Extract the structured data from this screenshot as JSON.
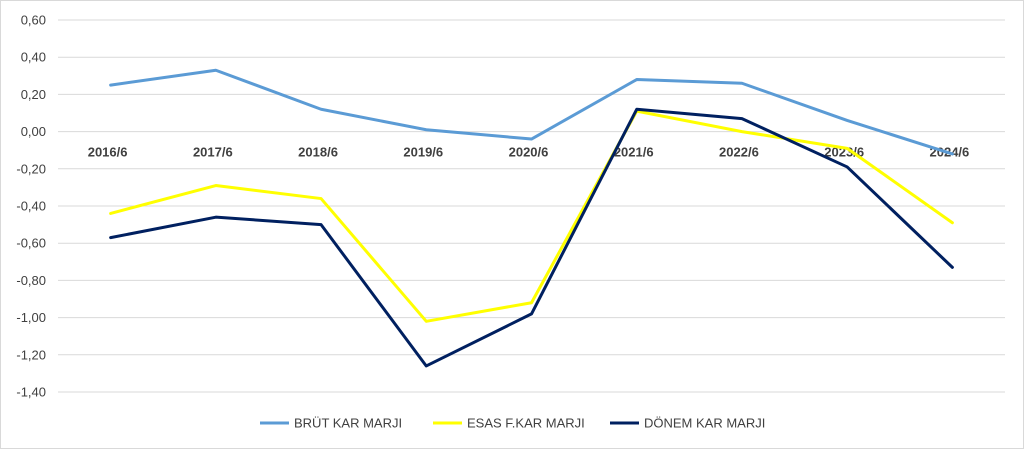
{
  "chart_data": {
    "type": "line",
    "title": "",
    "xlabel": "",
    "ylabel": "",
    "categories": [
      "2016/6",
      "2017/6",
      "2018/6",
      "2019/6",
      "2020/6",
      "2021/6",
      "2022/6",
      "2023/6",
      "2024/6"
    ],
    "ylim": [
      -1.4,
      0.6
    ],
    "yticks": [
      0.6,
      0.4,
      0.2,
      0.0,
      -0.2,
      -0.4,
      -0.6,
      -0.8,
      -1.0,
      -1.2,
      -1.4
    ],
    "ytick_labels": [
      "0,60",
      "0,40",
      "0,20",
      "0,00",
      "-0,20",
      "-0,40",
      "-0,60",
      "-0,80",
      "-1,00",
      "-1,20",
      "-1,40"
    ],
    "grid": true,
    "legend_position": "bottom",
    "series": [
      {
        "name": "BRÜT KAR MARJI",
        "color": "#5B9BD5",
        "values": [
          0.25,
          0.33,
          0.12,
          0.01,
          -0.04,
          0.28,
          0.26,
          0.06,
          -0.12
        ]
      },
      {
        "name": "ESAS F.KAR MARJI",
        "color": "#FFFF00",
        "values": [
          -0.44,
          -0.29,
          -0.36,
          -1.02,
          -0.92,
          0.11,
          0.0,
          -0.09,
          -0.49
        ]
      },
      {
        "name": "DÖNEM KAR MARJI",
        "color": "#002060",
        "values": [
          -0.57,
          -0.46,
          -0.5,
          -1.26,
          -0.98,
          0.12,
          0.07,
          -0.19,
          -0.73
        ]
      }
    ]
  }
}
